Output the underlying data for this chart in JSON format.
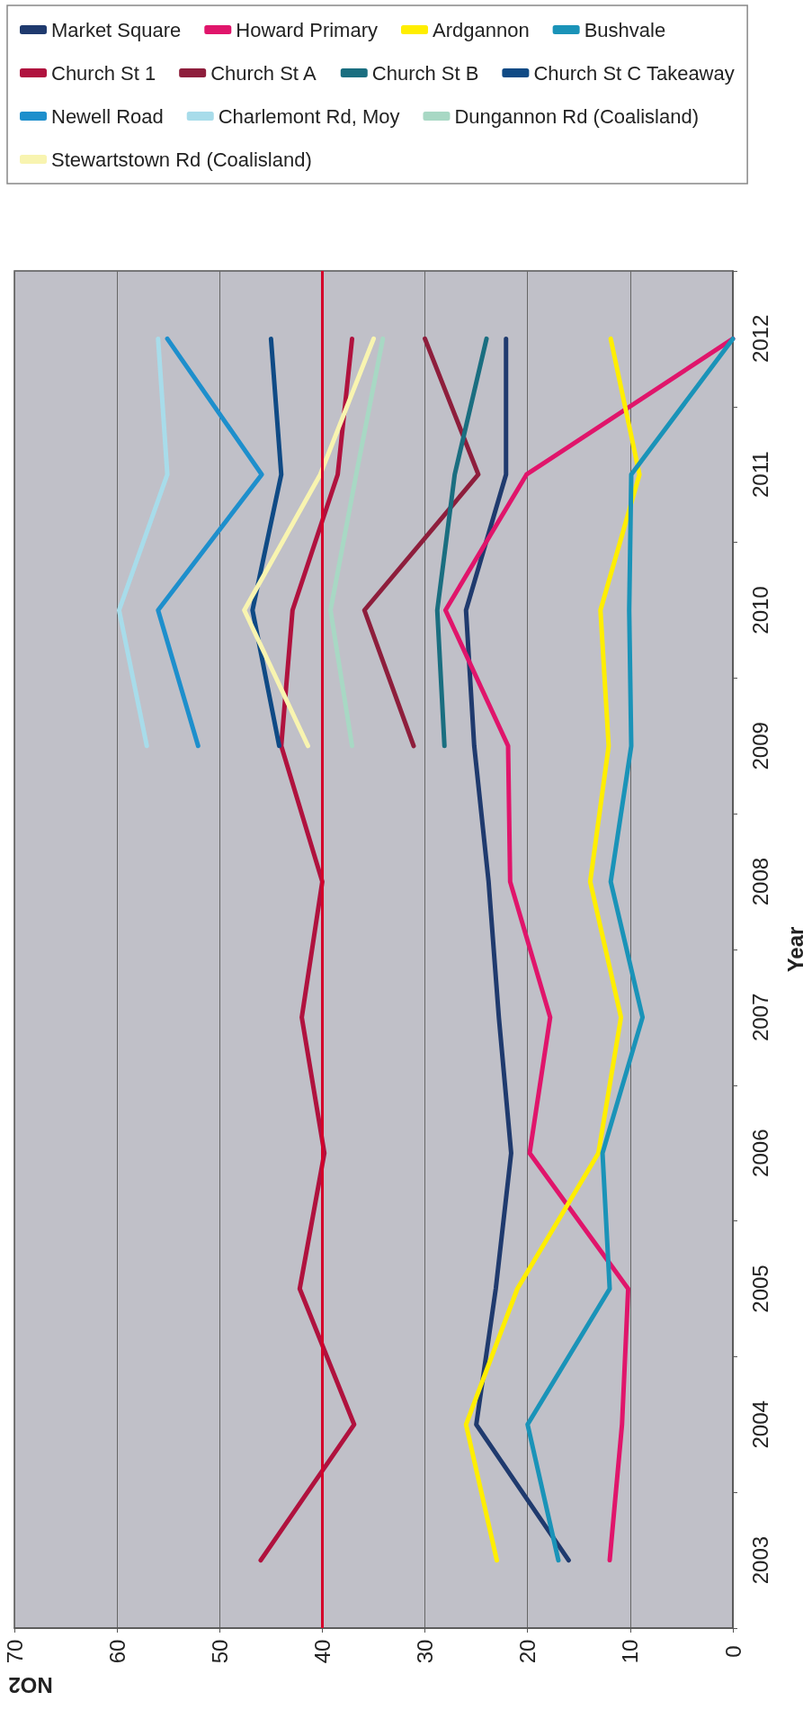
{
  "chart_data": {
    "type": "line",
    "orientation": "horizontal",
    "xlabel": "NO2",
    "ylabel": "Year",
    "categories": [
      "2012",
      "2011",
      "2010",
      "2009",
      "2008",
      "2007",
      "2006",
      "2005",
      "2004",
      "2003"
    ],
    "xlim": [
      70,
      0
    ],
    "xticks": [
      70,
      60,
      50,
      40,
      30,
      20,
      10,
      0
    ],
    "grid": "x",
    "legend": "top",
    "marker": "none",
    "ref_lines": [
      {
        "axis": "x",
        "value": 40,
        "color": "#d4002a"
      }
    ],
    "series": [
      {
        "name": "Market Square",
        "color": "#1f3a6e",
        "values": [
          22.1,
          22.1,
          26.0,
          25.2,
          23.8,
          22.8,
          21.6,
          23.1,
          25.0,
          16.0
        ]
      },
      {
        "name": "Howard Primary",
        "color": "#e0156b",
        "values": [
          0,
          20.1,
          28.0,
          21.9,
          21.7,
          17.8,
          19.8,
          10.2,
          10.8,
          12.0
        ]
      },
      {
        "name": "Ardgannon",
        "color": "#ffee00",
        "values": [
          11.9,
          9.1,
          12.9,
          12.1,
          13.9,
          10.9,
          13.1,
          21.0,
          26.0,
          23.0
        ]
      },
      {
        "name": "Bushvale",
        "color": "#1a93b8",
        "values": [
          0,
          9.9,
          10.1,
          9.9,
          11.9,
          8.8,
          12.7,
          12.0,
          20.0,
          17.0
        ]
      },
      {
        "name": "Church St 1",
        "color": "#b0123e",
        "values": [
          37.1,
          38.5,
          42.9,
          44.0,
          40.0,
          42.0,
          39.8,
          42.2,
          36.9,
          46.0
        ]
      },
      {
        "name": "Church St A",
        "color": "#8e1e3c",
        "values": [
          30.0,
          24.8,
          35.9,
          31.1,
          null,
          null,
          null,
          null,
          null,
          null
        ]
      },
      {
        "name": "Church St B",
        "color": "#1a6e80",
        "values": [
          24.0,
          27.1,
          28.8,
          28.1,
          null,
          null,
          null,
          null,
          null,
          null
        ]
      },
      {
        "name": "Church St C Takeaway",
        "color": "#0f4a85",
        "values": [
          45.0,
          44.0,
          46.8,
          44.2,
          null,
          null,
          null,
          null,
          null,
          null
        ]
      },
      {
        "name": "Newell Road",
        "color": "#1e8fcc",
        "values": [
          55.1,
          45.9,
          56.0,
          52.1,
          null,
          null,
          null,
          null,
          null,
          null
        ]
      },
      {
        "name": "Charlemont Rd, Moy",
        "color": "#a8dcea",
        "values": [
          56.0,
          55.1,
          59.8,
          57.1,
          null,
          null,
          null,
          null,
          null,
          null
        ]
      },
      {
        "name": "Dungannon Rd (Coalisland)",
        "color": "#a8d8c4",
        "values": [
          34.1,
          36.7,
          39.2,
          37.1,
          null,
          null,
          null,
          null,
          null,
          null
        ]
      },
      {
        "name": "Stewartstown Rd (Coalisland)",
        "color": "#f8f4b0",
        "values": [
          35.0,
          40.2,
          47.6,
          41.4,
          null,
          null,
          null,
          null,
          null,
          null
        ]
      }
    ]
  }
}
